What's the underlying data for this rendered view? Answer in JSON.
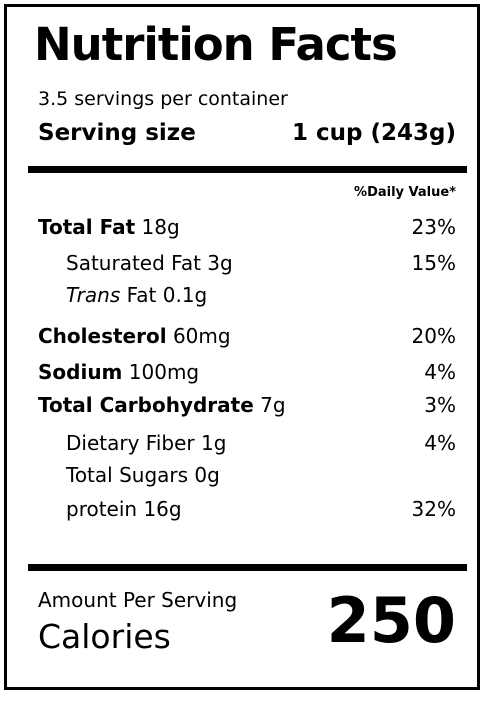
{
  "label": {
    "title": "Nutrition Facts",
    "servings_per_container": "3.5 servings per container",
    "serving_size_label": "Serving size",
    "serving_size_value": "1 cup (243g)",
    "daily_value_header": "%Daily Value*",
    "nutrients": [
      {
        "name": "Total Fat",
        "amount": "18g",
        "dv": "23%"
      },
      {
        "name": "Saturated Fat",
        "amount": "3g",
        "dv": "15%"
      },
      {
        "name_prefix": "Trans",
        "name": "Fat",
        "amount": "0.1g",
        "dv": ""
      },
      {
        "name": "Cholesterol",
        "amount": "60mg",
        "dv": "20%"
      },
      {
        "name": "Sodium",
        "amount": "100mg",
        "dv": "4%"
      },
      {
        "name": "Total Carbohydrate",
        "amount": "7g",
        "dv": "3%"
      },
      {
        "name": "Dietary Fiber",
        "amount": "1g",
        "dv": "4%"
      },
      {
        "name": "Total Sugars",
        "amount": "0g",
        "dv": ""
      },
      {
        "name": "protein",
        "amount": "16g",
        "dv": "32%"
      }
    ],
    "amount_per_serving": "Amount Per Serving",
    "calories_label": "Calories",
    "calories_value": "250"
  }
}
